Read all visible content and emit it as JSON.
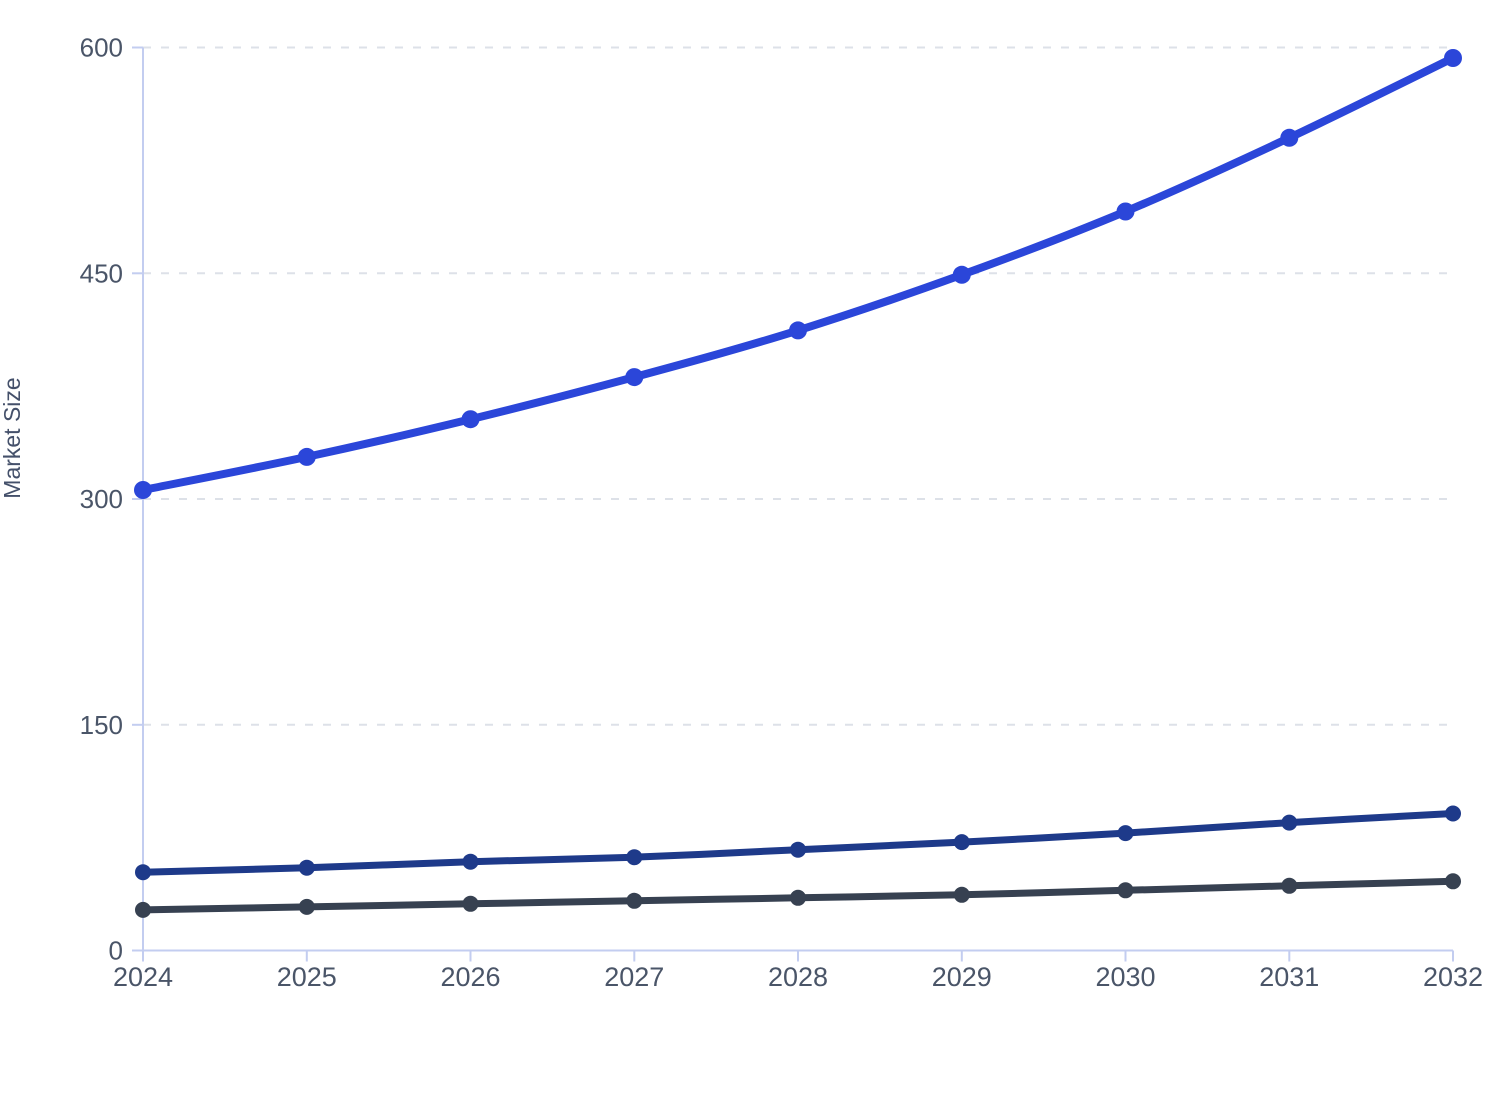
{
  "figure": {
    "title": "",
    "ylabel": "Market Size"
  },
  "chart_data": {
    "type": "line",
    "title": "",
    "xlabel": "",
    "ylabel": "Market Size",
    "x": [
      2024,
      2025,
      2026,
      2027,
      2028,
      2029,
      2030,
      2031,
      2032
    ],
    "xtick_labels": [
      "2024",
      "2025",
      "2026",
      "2027",
      "2028",
      "2029",
      "2030",
      "2031",
      "2032"
    ],
    "yticks": [
      0,
      150,
      300,
      450,
      600
    ],
    "ytick_labels": [
      "0",
      "150",
      "300",
      "450",
      "600"
    ],
    "ylim": [
      0,
      600
    ],
    "grid": "horizontal-dashed",
    "legend_position": "none",
    "series": [
      {
        "name": "series-blue",
        "color": "#2b46d9",
        "line_width": 8,
        "point_radius": 9,
        "values": [
          306,
          328,
          353,
          381,
          412,
          449,
          491,
          540,
          593
        ]
      },
      {
        "name": "series-navy",
        "color": "#1e3a8a",
        "line_width": 7,
        "point_radius": 8,
        "values": [
          52,
          55,
          59,
          62,
          67,
          72,
          78,
          85,
          91
        ]
      },
      {
        "name": "series-slate",
        "color": "#374151",
        "line_width": 7,
        "point_radius": 8,
        "values": [
          27,
          29,
          31,
          33,
          35,
          37,
          40,
          43,
          46
        ]
      }
    ],
    "colors": {
      "background": "#ffffff",
      "axis": "#c3cdf0",
      "grid": "#dde1e8",
      "tick_text": "#4a5568",
      "axis_label_text": "#44506a"
    }
  }
}
